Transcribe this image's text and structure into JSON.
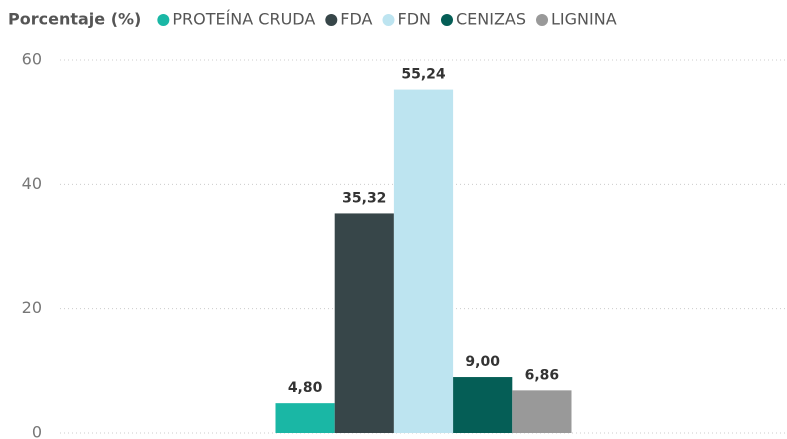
{
  "chart_data": {
    "type": "bar",
    "legend_title": "Porcentaje (%)",
    "categories": [
      null
    ],
    "series": [
      {
        "name": "PROTEÍNA CRUDA",
        "color": "#1ab7a5",
        "values": [
          4.8
        ],
        "value_labels": [
          "4,80"
        ]
      },
      {
        "name": "FDA",
        "color": "#374649",
        "values": [
          35.32
        ],
        "value_labels": [
          "35,32"
        ]
      },
      {
        "name": "FDN",
        "color": "#bde4f0",
        "values": [
          55.24
        ],
        "value_labels": [
          "55,24"
        ]
      },
      {
        "name": "CENIZAS",
        "color": "#055e56",
        "values": [
          9.0
        ],
        "value_labels": [
          "9,00"
        ]
      },
      {
        "name": "LIGNINA",
        "color": "#999999",
        "values": [
          6.86
        ],
        "value_labels": [
          "6,86"
        ]
      }
    ],
    "ylim": [
      0,
      60
    ],
    "yticks": [
      0,
      20,
      40,
      60
    ],
    "grid": true,
    "legend": "top-left"
  }
}
